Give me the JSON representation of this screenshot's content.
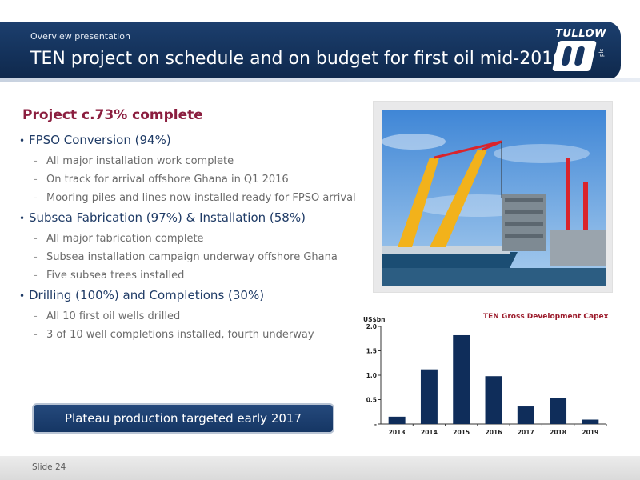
{
  "header": {
    "subtitle": "Overview presentation",
    "title": "TEN project on schedule and on budget for first oil mid-2016",
    "logo_text": "TULLOW",
    "logo_plc": "plc"
  },
  "content": {
    "heading": "Project c.73% complete",
    "sections": [
      {
        "label": "FPSO Conversion (94%)",
        "items": [
          "All major installation work complete",
          "On track for arrival offshore Ghana in Q1 2016",
          "Mooring piles and lines now installed ready for FPSO arrival"
        ]
      },
      {
        "label": "Subsea Fabrication (97%) & Installation (58%)",
        "items": [
          "All major fabrication complete",
          "Subsea installation campaign underway offshore Ghana",
          "Five subsea trees installed"
        ]
      },
      {
        "label": "Drilling (100%) and Completions (30%)",
        "items": [
          "All 10 first oil wells drilled",
          "3 of 10 well completions installed, fourth underway"
        ]
      }
    ],
    "callout": "Plateau production targeted early 2017"
  },
  "chart_data": {
    "type": "bar",
    "title": "TEN Gross Development Capex",
    "ylabel": "US$bn",
    "categories": [
      "2013",
      "2014",
      "2015",
      "2016",
      "2017",
      "2018",
      "2019"
    ],
    "values": [
      0.15,
      1.12,
      1.82,
      0.98,
      0.36,
      0.53,
      0.09
    ],
    "ylim": [
      0,
      2.0
    ],
    "yticks": [
      "-",
      "0.5",
      "1.0",
      "1.5",
      "2.0"
    ],
    "bar_color": "#0f2d5a",
    "grid": false
  },
  "footer": {
    "slide_label": "Slide 24"
  },
  "colors": {
    "header_bg": "#163562",
    "heading": "#8b1e3f",
    "chart_title": "#9c1c2c"
  }
}
